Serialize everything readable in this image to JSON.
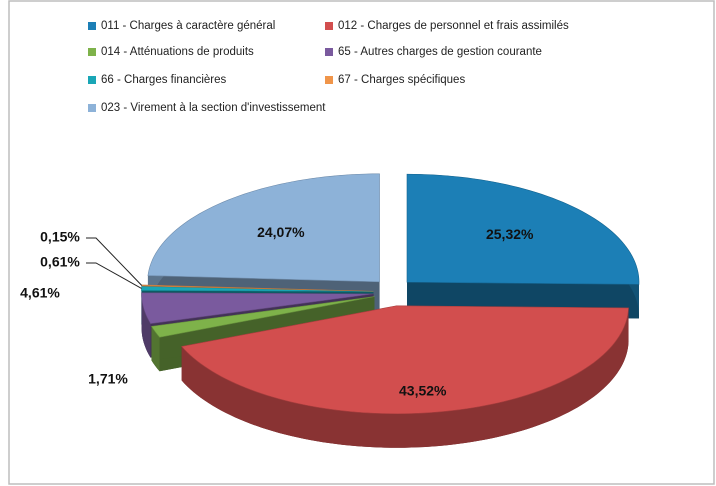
{
  "chart_data": {
    "type": "pie",
    "categories": [
      "011 - Charges à caractère général",
      "012 - Charges de personnel et frais assimilés",
      "014 - Atténuations de produits",
      "65 - Autres charges de gestion courante",
      "66 - Charges financières",
      "67 - Charges spécifiques",
      "023 - Virement à la section d'investissement"
    ],
    "values": [
      25.32,
      43.52,
      1.71,
      4.61,
      0.61,
      0.15,
      24.07
    ],
    "value_labels": [
      "25,32%",
      "43,52%",
      "1,71%",
      "4,61%",
      "0,61%",
      "0,15%",
      "24,07%"
    ],
    "colors": [
      "#1c7fb6",
      "#d24e4e",
      "#7eb24a",
      "#7a5a9e",
      "#19a6b6",
      "#f0954a",
      "#8db2d8"
    ],
    "legend": "top"
  }
}
